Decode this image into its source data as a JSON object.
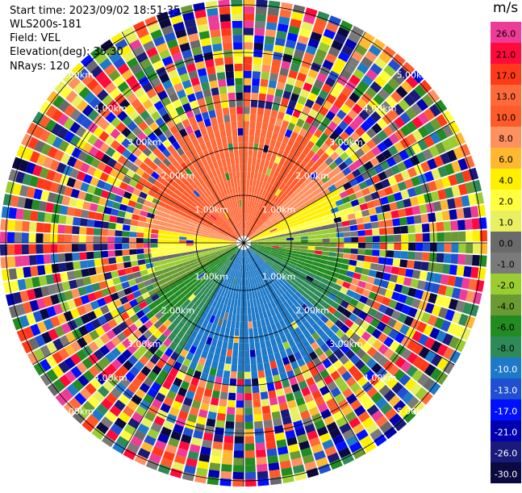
{
  "header": {
    "start_time": "Start time: 2023/09/02 18:51:35",
    "instrument": "WLS200s-181",
    "field": "Field: VEL",
    "elevation": "Elevation(deg): 35.30",
    "nrays": "NRays: 120"
  },
  "colorbar": {
    "unit": "m/s",
    "ticks": [
      "26.0",
      "21.0",
      "17.0",
      "13.0",
      "10.0",
      "8.0",
      "6.0",
      "4.0",
      "2.0",
      "1.0",
      "0.0",
      "-1.0",
      "-2.0",
      "-4.0",
      "-6.0",
      "-8.0",
      "-10.0",
      "-13.0",
      "-17.0",
      "-21.0",
      "-26.0",
      "-30.0"
    ],
    "colors": [
      "#ee3b98",
      "#ff0a3a",
      "#ff3a1a",
      "#ff6a3a",
      "#ff5a2a",
      "#ff9060",
      "#ffb830",
      "#fff000",
      "#ffff40",
      "#e8f060",
      "#6a6a6a",
      "#7a7a7a",
      "#9acd32",
      "#6a9a32",
      "#228b22",
      "#2e8b57",
      "#1e7ac8",
      "#2050d0",
      "#0010ff",
      "#0000b0",
      "#1a1a7a",
      "#0a0a40"
    ]
  },
  "ring_labels": [
    "1.00km",
    "2.00km",
    "3.00km",
    "4.00km",
    "5.00km"
  ]
}
